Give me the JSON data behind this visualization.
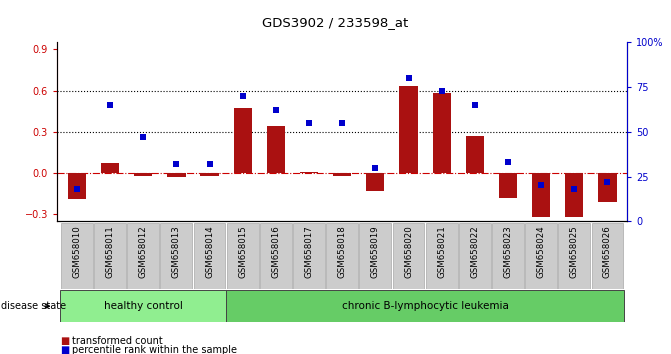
{
  "title": "GDS3902 / 233598_at",
  "samples": [
    "GSM658010",
    "GSM658011",
    "GSM658012",
    "GSM658013",
    "GSM658014",
    "GSM658015",
    "GSM658016",
    "GSM658017",
    "GSM658018",
    "GSM658019",
    "GSM658020",
    "GSM658021",
    "GSM658022",
    "GSM658023",
    "GSM658024",
    "GSM658025",
    "GSM658026"
  ],
  "bar_values": [
    -0.19,
    0.07,
    -0.02,
    -0.03,
    -0.02,
    0.47,
    0.34,
    0.01,
    -0.02,
    -0.13,
    0.63,
    0.58,
    0.27,
    -0.18,
    -0.32,
    -0.32,
    -0.21
  ],
  "blue_values": [
    18,
    65,
    47,
    32,
    32,
    70,
    62,
    55,
    55,
    30,
    80,
    73,
    65,
    33,
    20,
    18,
    22
  ],
  "ylim_left": [
    -0.35,
    0.95
  ],
  "ylim_right": [
    0,
    100
  ],
  "yticks_left": [
    -0.3,
    0.0,
    0.3,
    0.6,
    0.9
  ],
  "yticks_right": [
    0,
    25,
    50,
    75,
    100
  ],
  "ytick_labels_right": [
    "0",
    "25",
    "50",
    "75",
    "100%"
  ],
  "hline_y": [
    0.0,
    0.3,
    0.6
  ],
  "hline_styles": [
    "dashdot",
    "dotted",
    "dotted"
  ],
  "hline_colors": [
    "#cc0000",
    "#000000",
    "#000000"
  ],
  "bar_color": "#aa1111",
  "blue_color": "#0000cc",
  "healthy_color": "#90ee90",
  "leukemia_color": "#66cc66",
  "healthy_label": "healthy control",
  "leukemia_label": "chronic B-lymphocytic leukemia",
  "disease_state_label": "disease state",
  "legend_bar_label": "transformed count",
  "legend_blue_label": "percentile rank within the sample",
  "left_axis_color": "#cc0000",
  "right_axis_color": "#0000cc",
  "background_color": "#ffffff",
  "tick_label_bg": "#cccccc"
}
